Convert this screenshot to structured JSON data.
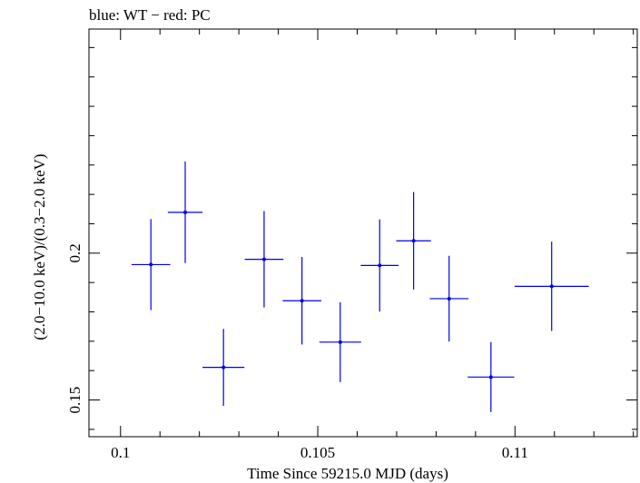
{
  "chart_data": {
    "type": "scatter",
    "title": "blue: WT − red: PC",
    "xlabel": "Time Since 59215.0 MJD (days)",
    "ylabel": "(2.0−10.0 keV)/(0.3−2.0 keV)",
    "xlim": [
      0.0992,
      0.1131
    ],
    "ylim": [
      0.1375,
      0.2763
    ],
    "x_ticks": [
      {
        "value": 0.1,
        "label": "0.1"
      },
      {
        "value": 0.105,
        "label": "0.105"
      },
      {
        "value": 0.11,
        "label": "0.11"
      }
    ],
    "y_ticks": [
      {
        "value": 0.15,
        "label": "0.15"
      },
      {
        "value": 0.2,
        "label": "0.2"
      }
    ],
    "grid": false,
    "series": [
      {
        "color": "#0000ee",
        "points": [
          {
            "x": 0.10077,
            "xerr": 0.00049,
            "y": 0.1961,
            "yerr": 0.0155
          },
          {
            "x": 0.10164,
            "xerr": 0.00044,
            "y": 0.2139,
            "yerr": 0.0173
          },
          {
            "x": 0.10261,
            "xerr": 0.00053,
            "y": 0.1611,
            "yerr": 0.0131
          },
          {
            "x": 0.10364,
            "xerr": 0.00049,
            "y": 0.1979,
            "yerr": 0.0164
          },
          {
            "x": 0.1046,
            "xerr": 0.00049,
            "y": 0.1838,
            "yerr": 0.0149
          },
          {
            "x": 0.10557,
            "xerr": 0.00053,
            "y": 0.1697,
            "yerr": 0.0136
          },
          {
            "x": 0.10657,
            "xerr": 0.00048,
            "y": 0.1958,
            "yerr": 0.0157
          },
          {
            "x": 0.10743,
            "xerr": 0.00044,
            "y": 0.2042,
            "yerr": 0.0166
          },
          {
            "x": 0.10833,
            "xerr": 0.00049,
            "y": 0.1845,
            "yerr": 0.0146
          },
          {
            "x": 0.10939,
            "xerr": 0.00059,
            "y": 0.1578,
            "yerr": 0.0119
          },
          {
            "x": 0.11093,
            "xerr": 0.00094,
            "y": 0.1887,
            "yerr": 0.0152
          }
        ]
      }
    ]
  }
}
